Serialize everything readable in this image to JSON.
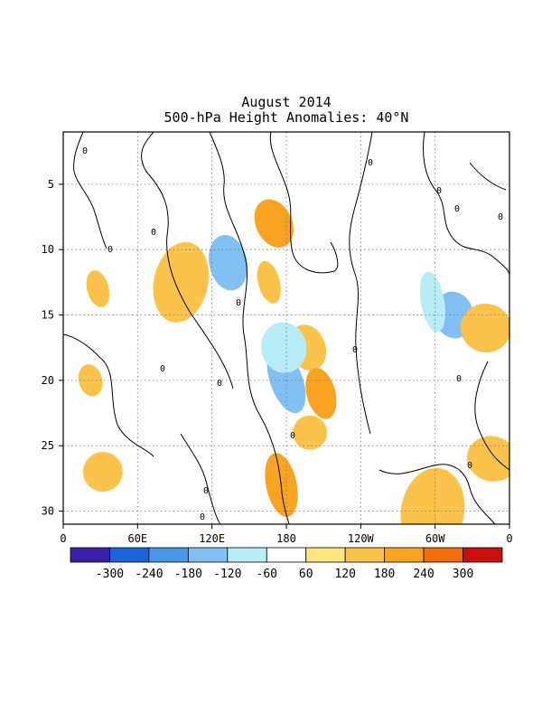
{
  "chart_data": {
    "type": "heatmap",
    "title": "August 2014",
    "subtitle": "500-hPa Height Anomalies: 40°N",
    "x_ticks": [
      "0",
      "60E",
      "120E",
      "180",
      "120W",
      "60W",
      "0"
    ],
    "y_ticks": [
      "5",
      "10",
      "15",
      "20",
      "25",
      "30"
    ],
    "xlim": [
      0,
      360
    ],
    "ylim": [
      1,
      31
    ],
    "grid": true,
    "colorbar": {
      "labels": [
        "-300",
        "-240",
        "-180",
        "-120",
        "-60",
        "60",
        "120",
        "180",
        "240",
        "300"
      ],
      "colors": [
        "#3b1fa6",
        "#1d64d9",
        "#4a97e8",
        "#82bff3",
        "#b8ecf7",
        "#ffffff",
        "#fde77e",
        "#fbc34b",
        "#f9a323",
        "#f36d11",
        "#c8100c"
      ]
    },
    "features": [
      {
        "lon": 170,
        "day": 8.0,
        "value": 180
      },
      {
        "lon": 166,
        "day": 12.5,
        "value": 120
      },
      {
        "lon": 197,
        "day": 17.5,
        "value": 120
      },
      {
        "lon": 208,
        "day": 21,
        "value": 180
      },
      {
        "lon": 199,
        "day": 24,
        "value": 120
      },
      {
        "lon": 176,
        "day": 28,
        "value": 180
      },
      {
        "lon": 133,
        "day": 11,
        "value": -180
      },
      {
        "lon": 180,
        "day": 20,
        "value": -180
      },
      {
        "lon": 178,
        "day": 17.5,
        "value": -120
      },
      {
        "lon": 315,
        "day": 15,
        "value": -180
      },
      {
        "lon": 298,
        "day": 14,
        "value": -120
      },
      {
        "lon": 290,
        "day": 9,
        "value": -60
      },
      {
        "lon": 200,
        "day": 3,
        "value": -60
      },
      {
        "lon": 28,
        "day": 13,
        "value": 120
      },
      {
        "lon": 22,
        "day": 20,
        "value": 120
      },
      {
        "lon": 32,
        "day": 27,
        "value": 120
      },
      {
        "lon": 95,
        "day": 12.5,
        "value": 120
      },
      {
        "lon": 346,
        "day": 26,
        "value": 120
      },
      {
        "lon": 341,
        "day": 16,
        "value": 120
      },
      {
        "lon": 298,
        "day": 30,
        "value": 120
      }
    ],
    "contour_zero_label": "0"
  }
}
